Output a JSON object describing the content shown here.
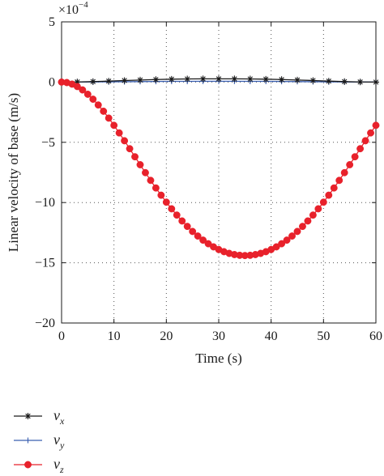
{
  "chart_data": {
    "type": "line",
    "title": "",
    "xlabel": "Time (s)",
    "ylabel": "Linear velocity of base (m/s)",
    "xlim": [
      0,
      60
    ],
    "ylim": [
      -20,
      5
    ],
    "xticks": [
      0,
      10,
      20,
      30,
      40,
      50,
      60
    ],
    "yticks": [
      5,
      0,
      -5,
      -10,
      -15,
      -20
    ],
    "y_multiplier": "×10",
    "y_multiplier_exp": "−4",
    "grid": "dotted",
    "legend_position": "bottom-left",
    "series": [
      {
        "name": "v",
        "subscript": "x",
        "color": "#1a1a1a",
        "marker": "star",
        "x": [
          0,
          3,
          6,
          9,
          12,
          15,
          18,
          21,
          24,
          27,
          30,
          33,
          36,
          39,
          42,
          45,
          48,
          51,
          54,
          57,
          60
        ],
        "y": [
          0,
          0.01,
          0.04,
          0.08,
          0.13,
          0.17,
          0.21,
          0.24,
          0.26,
          0.27,
          0.27,
          0.27,
          0.26,
          0.24,
          0.21,
          0.17,
          0.13,
          0.08,
          0.04,
          0.01,
          0
        ]
      },
      {
        "name": "v",
        "subscript": "y",
        "color": "#3a5fb0",
        "marker": "plus",
        "x": [
          0,
          3,
          6,
          9,
          12,
          15,
          18,
          21,
          24,
          27,
          30,
          33,
          36,
          39,
          42,
          45,
          48,
          51,
          54,
          57,
          60
        ],
        "y": [
          0,
          0.005,
          0.01,
          0.02,
          0.03,
          0.04,
          0.05,
          0.06,
          0.06,
          0.07,
          0.07,
          0.07,
          0.06,
          0.06,
          0.05,
          0.04,
          0.03,
          0.02,
          0.01,
          0.005,
          0
        ]
      },
      {
        "name": "v",
        "subscript": "z",
        "color": "#e8212b",
        "marker": "circle",
        "x": [
          0,
          1,
          2,
          3,
          4,
          5,
          6,
          7,
          8,
          9,
          10,
          11,
          12,
          13,
          14,
          15,
          16,
          17,
          18,
          19,
          20,
          21,
          22,
          23,
          24,
          25,
          26,
          27,
          28,
          29,
          30,
          31,
          32,
          33,
          34,
          35,
          36,
          37,
          38,
          39,
          40,
          41,
          42,
          43,
          44,
          45,
          46,
          47,
          48,
          49,
          50,
          51,
          52,
          53,
          54,
          55,
          56,
          57,
          58,
          59,
          60
        ],
        "y": [
          0,
          -0.04,
          -0.17,
          -0.37,
          -0.65,
          -1.01,
          -1.42,
          -1.9,
          -2.42,
          -2.99,
          -3.59,
          -4.22,
          -4.87,
          -5.53,
          -6.2,
          -6.86,
          -7.52,
          -8.16,
          -8.79,
          -9.39,
          -9.97,
          -10.52,
          -11.04,
          -11.53,
          -11.98,
          -12.4,
          -12.78,
          -13.12,
          -13.42,
          -13.68,
          -13.9,
          -14.08,
          -14.22,
          -14.32,
          -14.38,
          -14.4,
          -14.38,
          -14.32,
          -14.22,
          -14.08,
          -13.9,
          -13.68,
          -13.42,
          -13.12,
          -12.78,
          -12.4,
          -11.98,
          -11.53,
          -11.04,
          -10.52,
          -9.97,
          -9.39,
          -8.79,
          -8.16,
          -7.52,
          -6.86,
          -6.2,
          -5.53,
          -4.87,
          -4.22,
          -3.59
        ]
      }
    ]
  }
}
